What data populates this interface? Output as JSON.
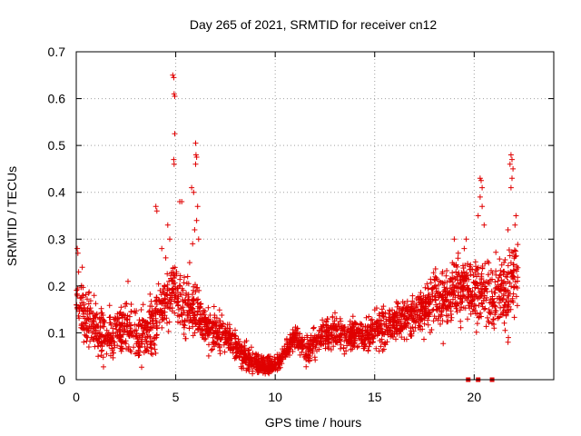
{
  "chart_data": {
    "type": "scatter",
    "title": "Day 265 of 2021, SRMTID for receiver cn12",
    "xlabel": "GPS time / hours",
    "ylabel": "SRMTID / TECUs",
    "xlim": [
      0,
      24
    ],
    "ylim": [
      0,
      0.7
    ],
    "xticks": [
      0,
      5,
      10,
      15,
      20
    ],
    "xtick_labels": [
      "0",
      "5",
      "10",
      "15",
      "20"
    ],
    "yticks": [
      0,
      0.1,
      0.2,
      0.3,
      0.4,
      0.5,
      0.6,
      0.7
    ],
    "ytick_labels": [
      "0",
      "0.1",
      "0.2",
      "0.3",
      "0.4",
      "0.5",
      "0.6",
      "0.7"
    ],
    "grid": true,
    "marker": "plus",
    "color": "#e00000",
    "trend": {
      "x": [
        0,
        0.5,
        1,
        1.5,
        2,
        2.5,
        3,
        3.5,
        4,
        4.5,
        5,
        5.5,
        6,
        6.5,
        7,
        7.5,
        8,
        8.5,
        9,
        9.5,
        10,
        10.5,
        11,
        11.5,
        12,
        12.5,
        13,
        13.5,
        14,
        14.5,
        15,
        15.5,
        16,
        16.5,
        17,
        17.5,
        18,
        18.5,
        19,
        19.5,
        20,
        20.5,
        21,
        21.5,
        22,
        22.2
      ],
      "y": [
        0.17,
        0.13,
        0.11,
        0.09,
        0.1,
        0.11,
        0.1,
        0.1,
        0.13,
        0.17,
        0.19,
        0.16,
        0.15,
        0.11,
        0.1,
        0.09,
        0.07,
        0.05,
        0.035,
        0.03,
        0.03,
        0.06,
        0.09,
        0.06,
        0.08,
        0.1,
        0.1,
        0.09,
        0.1,
        0.09,
        0.11,
        0.11,
        0.12,
        0.13,
        0.14,
        0.15,
        0.18,
        0.17,
        0.19,
        0.2,
        0.19,
        0.18,
        0.17,
        0.19,
        0.21,
        0.24
      ]
    },
    "spread": {
      "x": [
        0,
        2,
        4,
        5,
        6,
        8,
        10,
        12,
        14,
        16,
        18,
        20,
        22.2
      ],
      "y": [
        0.05,
        0.04,
        0.05,
        0.06,
        0.05,
        0.025,
        0.015,
        0.03,
        0.03,
        0.035,
        0.05,
        0.06,
        0.07
      ]
    },
    "num_points": 2600,
    "seed": 265,
    "highlights": [
      {
        "x": 4.85,
        "y": 0.65
      },
      {
        "x": 4.9,
        "y": 0.645
      },
      {
        "x": 4.92,
        "y": 0.61
      },
      {
        "x": 4.95,
        "y": 0.605
      },
      {
        "x": 4.95,
        "y": 0.525
      },
      {
        "x": 4.9,
        "y": 0.47
      },
      {
        "x": 4.92,
        "y": 0.46
      },
      {
        "x": 5.2,
        "y": 0.38
      },
      {
        "x": 5.3,
        "y": 0.38
      },
      {
        "x": 4.0,
        "y": 0.37
      },
      {
        "x": 4.05,
        "y": 0.36
      },
      {
        "x": 4.6,
        "y": 0.33
      },
      {
        "x": 4.7,
        "y": 0.3
      },
      {
        "x": 5.8,
        "y": 0.41
      },
      {
        "x": 5.9,
        "y": 0.4
      },
      {
        "x": 6.0,
        "y": 0.505
      },
      {
        "x": 6.02,
        "y": 0.48
      },
      {
        "x": 6.05,
        "y": 0.475
      },
      {
        "x": 6.0,
        "y": 0.46
      },
      {
        "x": 6.1,
        "y": 0.37
      },
      {
        "x": 6.05,
        "y": 0.34
      },
      {
        "x": 5.95,
        "y": 0.32
      },
      {
        "x": 6.15,
        "y": 0.3
      },
      {
        "x": 5.85,
        "y": 0.29
      },
      {
        "x": 5.7,
        "y": 0.25
      },
      {
        "x": 5.6,
        "y": 0.22
      },
      {
        "x": 4.3,
        "y": 0.28
      },
      {
        "x": 4.5,
        "y": 0.26
      },
      {
        "x": 0.05,
        "y": 0.28
      },
      {
        "x": 0.08,
        "y": 0.27
      },
      {
        "x": 0.12,
        "y": 0.23
      },
      {
        "x": 0.3,
        "y": 0.24
      },
      {
        "x": 20.3,
        "y": 0.43
      },
      {
        "x": 20.35,
        "y": 0.425
      },
      {
        "x": 20.4,
        "y": 0.41
      },
      {
        "x": 20.3,
        "y": 0.39
      },
      {
        "x": 20.4,
        "y": 0.37
      },
      {
        "x": 20.5,
        "y": 0.33
      },
      {
        "x": 20.2,
        "y": 0.35
      },
      {
        "x": 21.85,
        "y": 0.48
      },
      {
        "x": 21.9,
        "y": 0.47
      },
      {
        "x": 21.8,
        "y": 0.46
      },
      {
        "x": 21.95,
        "y": 0.45
      },
      {
        "x": 21.9,
        "y": 0.43
      },
      {
        "x": 21.85,
        "y": 0.41
      },
      {
        "x": 22.1,
        "y": 0.35
      },
      {
        "x": 22.05,
        "y": 0.33
      },
      {
        "x": 21.7,
        "y": 0.32
      },
      {
        "x": 19.0,
        "y": 0.3
      },
      {
        "x": 19.6,
        "y": 0.3
      },
      {
        "x": 19.2,
        "y": 0.27
      },
      {
        "x": 19.5,
        "y": 0.28
      },
      {
        "x": 21.7,
        "y": 0.08
      },
      {
        "x": 21.72,
        "y": 0.09
      },
      {
        "x": 21.0,
        "y": 0.11
      },
      {
        "x": 20.9,
        "y": 0.12
      },
      {
        "x": 0.9,
        "y": 0.18
      },
      {
        "x": 1.1,
        "y": 0.05
      },
      {
        "x": 2.6,
        "y": 0.21
      },
      {
        "x": 3.2,
        "y": 0.06
      }
    ],
    "cycle_slips": [
      19.7,
      20.2,
      20.9
    ]
  }
}
